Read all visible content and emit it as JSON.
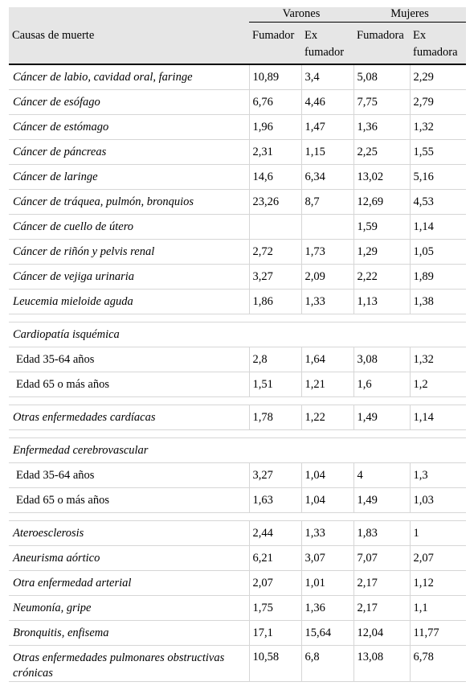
{
  "header": {
    "causas_label": "Causas de muerte",
    "group_varones": "Varones",
    "group_mujeres": "Mujeres",
    "varones_fumador": "Fumador",
    "varones_exfumador": "Ex fumador",
    "mujeres_fumadora": "Fumadora",
    "mujeres_exfumadora": "Ex fumadora"
  },
  "rows": [
    {
      "kind": "data",
      "style": "italic",
      "label": "Cáncer de labio, cavidad oral, faringe",
      "v": [
        "10,89",
        "3,4",
        "5,08",
        "2,29"
      ]
    },
    {
      "kind": "data",
      "style": "italic",
      "label": "Cáncer de esófago",
      "v": [
        "6,76",
        "4,46",
        "7,75",
        "2,79"
      ]
    },
    {
      "kind": "data",
      "style": "italic",
      "label": "Cáncer de estómago",
      "v": [
        "1,96",
        "1,47",
        "1,36",
        "1,32"
      ]
    },
    {
      "kind": "data",
      "style": "italic",
      "label": "Cáncer de páncreas",
      "v": [
        "2,31",
        "1,15",
        "2,25",
        "1,55"
      ]
    },
    {
      "kind": "data",
      "style": "italic",
      "label": "Cáncer de laringe",
      "v": [
        "14,6",
        "6,34",
        "13,02",
        "5,16"
      ]
    },
    {
      "kind": "data",
      "style": "italic",
      "label": "Cáncer de tráquea, pulmón, bronquios",
      "v": [
        "23,26",
        "8,7",
        "12,69",
        "4,53"
      ]
    },
    {
      "kind": "data",
      "style": "italic",
      "label": "Cáncer de cuello de útero",
      "v": [
        "",
        "",
        "1,59",
        "1,14"
      ]
    },
    {
      "kind": "data",
      "style": "italic",
      "label": "Cáncer de riñón y pelvis renal",
      "v": [
        "2,72",
        "1,73",
        "1,29",
        "1,05"
      ]
    },
    {
      "kind": "data",
      "style": "italic",
      "label": "Cáncer de vejiga urinaria",
      "v": [
        "3,27",
        "2,09",
        "2,22",
        "1,89"
      ]
    },
    {
      "kind": "data",
      "style": "italic",
      "label": "Leucemia mieloide aguda",
      "v": [
        "1,86",
        "1,33",
        "1,13",
        "1,38"
      ]
    },
    {
      "kind": "spacer"
    },
    {
      "kind": "heading",
      "label": "Cardiopatía isquémica"
    },
    {
      "kind": "data",
      "style": "sub",
      "label": "Edad 35-64 años",
      "v": [
        "2,8",
        "1,64",
        "3,08",
        "1,32"
      ]
    },
    {
      "kind": "data",
      "style": "sub",
      "label": "Edad 65 o más años",
      "v": [
        "1,51",
        "1,21",
        "1,6",
        "1,2"
      ]
    },
    {
      "kind": "spacer"
    },
    {
      "kind": "data",
      "style": "italic",
      "label": "Otras enfermedades cardíacas",
      "v": [
        "1,78",
        "1,22",
        "1,49",
        "1,14"
      ]
    },
    {
      "kind": "spacer"
    },
    {
      "kind": "heading",
      "label": "Enfermedad cerebrovascular"
    },
    {
      "kind": "data",
      "style": "sub",
      "label": "Edad 35-64 años",
      "v": [
        "3,27",
        "1,04",
        "4",
        "1,3"
      ]
    },
    {
      "kind": "data",
      "style": "sub",
      "label": "Edad 65 o más años",
      "v": [
        "1,63",
        "1,04",
        "1,49",
        "1,03"
      ]
    },
    {
      "kind": "spacer"
    },
    {
      "kind": "data",
      "style": "italic",
      "label": "Ateroesclerosis",
      "v": [
        "2,44",
        "1,33",
        "1,83",
        "1"
      ]
    },
    {
      "kind": "data",
      "style": "italic",
      "label": "Aneurisma aórtico",
      "v": [
        "6,21",
        "3,07",
        "7,07",
        "2,07"
      ]
    },
    {
      "kind": "data",
      "style": "italic",
      "label": "Otra enfermedad arterial",
      "v": [
        "2,07",
        "1,01",
        "2,17",
        "1,12"
      ]
    },
    {
      "kind": "data",
      "style": "italic",
      "label": "Neumonía, gripe",
      "v": [
        "1,75",
        "1,36",
        "2,17",
        "1,1"
      ]
    },
    {
      "kind": "data",
      "style": "italic",
      "label": "Bronquitis, enfisema",
      "v": [
        "17,1",
        "15,64",
        "12,04",
        "11,77"
      ]
    },
    {
      "kind": "data",
      "style": "italic",
      "label": "Otras enfermedades pulmonares obstructivas crónicas",
      "v": [
        "10,58",
        "6,8",
        "13,08",
        "6,78"
      ],
      "last": true
    }
  ]
}
